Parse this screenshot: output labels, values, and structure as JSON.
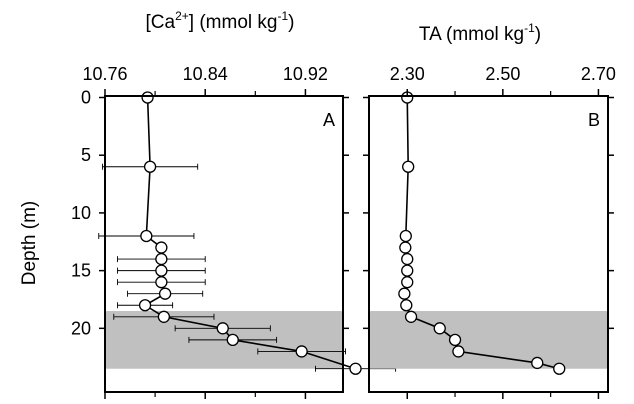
{
  "chart_data": [
    {
      "type": "scatter",
      "panel_letter": "A",
      "xlabel": "[Ca2+] (mmol kg-1)",
      "xlabel_parts": {
        "prefix": "[Ca",
        "sup1": "2+",
        "middle": "] (mmol kg",
        "sup2": "-1",
        "suffix": ")"
      },
      "ylabel": "Depth (m)",
      "xlim": [
        10.76,
        10.95
      ],
      "ylim": [
        0,
        24
      ],
      "y_inverted": true,
      "x_axis_position": "top",
      "xticks": [
        10.76,
        10.84,
        10.92
      ],
      "xtick_labels": [
        "10.76",
        "10.84",
        "10.92"
      ],
      "yticks": [
        0,
        5,
        10,
        15,
        20
      ],
      "ytick_labels": [
        "0",
        "5",
        "10",
        "15",
        "20"
      ],
      "shaded_band": {
        "y_from": 18.5,
        "y_to": 23.5,
        "color": "#c0c0c0"
      },
      "series": [
        {
          "connected": true,
          "points": [
            {
              "x": 10.794,
              "y": 0.0
            },
            {
              "x": 10.796,
              "y": 6.0,
              "xerr": 0.038
            },
            {
              "x": 10.793,
              "y": 12.0,
              "xerr": 0.038
            },
            {
              "x": 10.805,
              "y": 13.0
            },
            {
              "x": 10.805,
              "y": 14.0,
              "xerr": 0.035
            },
            {
              "x": 10.805,
              "y": 15.0,
              "xerr": 0.035
            },
            {
              "x": 10.805,
              "y": 16.0,
              "xerr": 0.035
            },
            {
              "x": 10.808,
              "y": 17.0,
              "xerr": 0.03
            },
            {
              "x": 10.792,
              "y": 18.0,
              "xerr": 0.022
            },
            {
              "x": 10.807,
              "y": 19.0,
              "xerr": 0.04
            },
            {
              "x": 10.854,
              "y": 20.0,
              "xerr": 0.038
            },
            {
              "x": 10.862,
              "y": 21.0,
              "xerr": 0.035
            },
            {
              "x": 10.917,
              "y": 22.0,
              "xerr": 0.035
            },
            {
              "x": 10.96,
              "y": 23.5,
              "xerr": 0.032
            }
          ]
        }
      ]
    },
    {
      "type": "scatter",
      "panel_letter": "B",
      "xlabel": "TA (mmol kg-1)",
      "xlabel_parts": {
        "prefix": "TA (mmol kg",
        "sup": "-1",
        "suffix": ")"
      },
      "xlim": [
        2.22,
        2.72
      ],
      "ylim": [
        0,
        24
      ],
      "y_inverted": true,
      "x_axis_position": "top",
      "xticks": [
        2.3,
        2.5,
        2.7
      ],
      "xtick_labels": [
        "2.30",
        "2.50",
        "2.70"
      ],
      "shaded_band": {
        "y_from": 18.5,
        "y_to": 23.5,
        "color": "#c0c0c0"
      },
      "series": [
        {
          "connected": true,
          "points": [
            {
              "x": 2.3,
              "y": 0.0
            },
            {
              "x": 2.302,
              "y": 6.0
            },
            {
              "x": 2.297,
              "y": 12.0
            },
            {
              "x": 2.296,
              "y": 13.0
            },
            {
              "x": 2.3,
              "y": 14.0
            },
            {
              "x": 2.3,
              "y": 15.0
            },
            {
              "x": 2.3,
              "y": 16.0
            },
            {
              "x": 2.294,
              "y": 17.0
            },
            {
              "x": 2.298,
              "y": 18.0
            },
            {
              "x": 2.308,
              "y": 19.0
            },
            {
              "x": 2.368,
              "y": 20.0
            },
            {
              "x": 2.4,
              "y": 21.0
            },
            {
              "x": 2.407,
              "y": 22.0
            },
            {
              "x": 2.572,
              "y": 23.0
            },
            {
              "x": 2.618,
              "y": 23.5
            }
          ]
        }
      ]
    }
  ]
}
